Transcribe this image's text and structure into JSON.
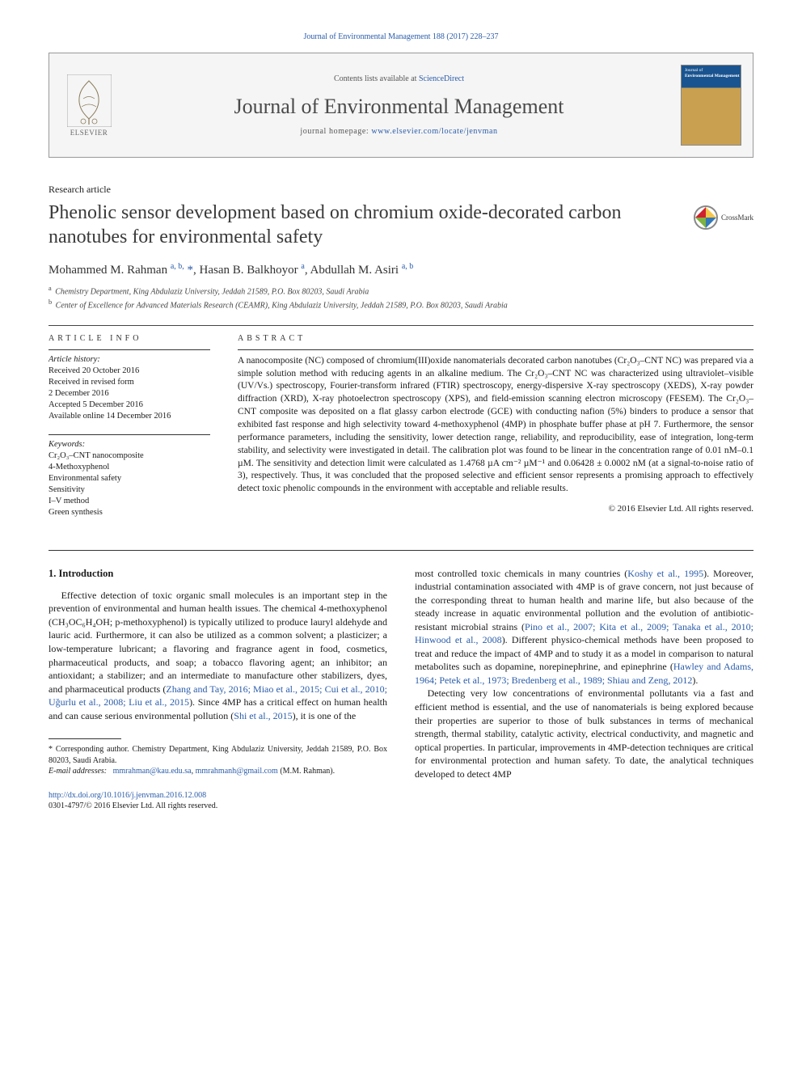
{
  "colors": {
    "link": "#2a5caa",
    "text": "#1a1a1a",
    "heading_gray": "#4a4a4a",
    "box_bg": "#f5f5f5",
    "box_border": "#999999",
    "rule": "#333333",
    "cover_top": "#1a5490",
    "cover_body": "#c9a050"
  },
  "fonts": {
    "body_family": "Georgia, 'Times New Roman', serif",
    "title_size_pt": 24,
    "journal_name_size_pt": 26,
    "abstract_size_pt": 11.5,
    "body_size_pt": 12,
    "small_size_pt": 10
  },
  "citation": "Journal of Environmental Management 188 (2017) 228–237",
  "header": {
    "contents_prefix": "Contents lists available at ",
    "contents_link_text": "ScienceDirect",
    "journal_name": "Journal of Environmental Management",
    "homepage_prefix": "journal homepage: ",
    "homepage_link": "www.elsevier.com/locate/jenvman",
    "publisher_name": "ELSEVIER",
    "cover_small_label": "Journal of",
    "cover_title_label": "Environmental Management"
  },
  "article_type": "Research article",
  "title": "Phenolic sensor development based on chromium oxide-decorated carbon nanotubes for environmental safety",
  "crossmark_label": "CrossMark",
  "authors_html": "Mohammed M. Rahman <sup>a, b,</sup> <span class='star'>*</span>, Hasan B. Balkhoyor <sup>a</sup>, Abdullah M. Asiri <sup>a, b</sup>",
  "affiliations": [
    {
      "sup": "a",
      "text": "Chemistry Department, King Abdulaziz University, Jeddah 21589, P.O. Box 80203, Saudi Arabia"
    },
    {
      "sup": "b",
      "text": "Center of Excellence for Advanced Materials Research (CEAMR), King Abdulaziz University, Jeddah 21589, P.O. Box 80203, Saudi Arabia"
    }
  ],
  "info": {
    "label": "ARTICLE INFO",
    "history_hdr": "Article history:",
    "history": [
      "Received 20 October 2016",
      "Received in revised form",
      "2 December 2016",
      "Accepted 5 December 2016",
      "Available online 14 December 2016"
    ],
    "keywords_hdr": "Keywords:",
    "keywords": [
      "Cr₂O₃–CNT nanocomposite",
      "4-Methoxyphenol",
      "Environmental safety",
      "Sensitivity",
      "I–V method",
      "Green synthesis"
    ]
  },
  "abstract": {
    "label": "ABSTRACT",
    "text": "A nanocomposite (NC) composed of chromium(III)oxide nanomaterials decorated carbon nanotubes (Cr₂O₃–CNT NC) was prepared via a simple solution method with reducing agents in an alkaline medium. The Cr₂O₃–CNT NC was characterized using ultraviolet–visible (UV/Vs.) spectroscopy, Fourier-transform infrared (FTIR) spectroscopy, energy-dispersive X-ray spectroscopy (XEDS), X-ray powder diffraction (XRD), X-ray photoelectron spectroscopy (XPS), and field-emission scanning electron microscopy (FESEM). The Cr₂O₃–CNT composite was deposited on a flat glassy carbon electrode (GCE) with conducting nafion (5%) binders to produce a sensor that exhibited fast response and high selectivity toward 4-methoxyphenol (4MP) in phosphate buffer phase at pH 7. Furthermore, the sensor performance parameters, including the sensitivity, lower detection range, reliability, and reproducibility, ease of integration, long-term stability, and selectivity were investigated in detail. The calibration plot was found to be linear in the concentration range of 0.01 nM–0.1 µM. The sensitivity and detection limit were calculated as 1.4768 µA cm⁻² µM⁻¹ and 0.06428 ± 0.0002 nM (at a signal-to-noise ratio of 3), respectively. Thus, it was concluded that the proposed selective and efficient sensor represents a promising approach to effectively detect toxic phenolic compounds in the environment with acceptable and reliable results.",
    "copyright": "© 2016 Elsevier Ltd. All rights reserved."
  },
  "body": {
    "section_heading": "1. Introduction",
    "col1_p1_a": "Effective detection of toxic organic small molecules is an important step in the prevention of environmental and human health issues. The chemical 4-methoxyphenol (CH₃OC₆H₄OH; p-methoxyphenol) is typically utilized to produce lauryl aldehyde and lauric acid. Furthermore, it can also be utilized as a common solvent; a plasticizer; a low-temperature lubricant; a flavoring and fragrance agent in food, cosmetics, pharmaceutical products, and soap; a tobacco flavoring agent; an inhibitor; an antioxidant; a stabilizer; and an intermediate to manufacture other stabilizers, dyes, and pharmaceutical products (",
    "col1_ref1": "Zhang and Tay, 2016; Miao et al., 2015; Cui et al., 2010; Uğurlu et al., 2008; Liu et al., 2015",
    "col1_p1_b": "). Since 4MP has a critical effect on human health and can cause serious environmental pollution (",
    "col1_ref2": "Shi et al., 2015",
    "col1_p1_c": "), it is one of the",
    "col2_p1_a": "most controlled toxic chemicals in many countries (",
    "col2_ref1": "Koshy et al., 1995",
    "col2_p1_b": "). Moreover, industrial contamination associated with 4MP is of grave concern, not just because of the corresponding threat to human health and marine life, but also because of the steady increase in aquatic environmental pollution and the evolution of antibiotic-resistant microbial strains (",
    "col2_ref2": "Pino et al., 2007; Kita et al., 2009; Tanaka et al., 2010; Hinwood et al., 2008",
    "col2_p1_c": "). Different physico-chemical methods have been proposed to treat and reduce the impact of 4MP and to study it as a model in comparison to natural metabolites such as dopamine, norepinephrine, and epinephrine (",
    "col2_ref3": "Hawley and Adams, 1964; Petek et al., 1973; Bredenberg et al., 1989; Shiau and Zeng, 2012",
    "col2_p1_d": ").",
    "col2_p2": "Detecting very low concentrations of environmental pollutants via a fast and efficient method is essential, and the use of nanomaterials is being explored because their properties are superior to those of bulk substances in terms of mechanical strength, thermal stability, catalytic activity, electrical conductivity, and magnetic and optical properties. In particular, improvements in 4MP-detection techniques are critical for environmental protection and human safety. To date, the analytical techniques developed to detect 4MP"
  },
  "footnotes": {
    "corr": "* Corresponding author. Chemistry Department, King Abdulaziz University, Jeddah 21589, P.O. Box 80203, Saudi Arabia.",
    "email_label": "E-mail addresses:",
    "email1": "mmrahman@kau.edu.sa",
    "email_join": ", ",
    "email2": "mmrahmanh@gmail.com",
    "email_author": "(M.M. Rahman)."
  },
  "doi": {
    "url": "http://dx.doi.org/10.1016/j.jenvman.2016.12.008",
    "issn_line": "0301-4797/© 2016 Elsevier Ltd. All rights reserved."
  }
}
